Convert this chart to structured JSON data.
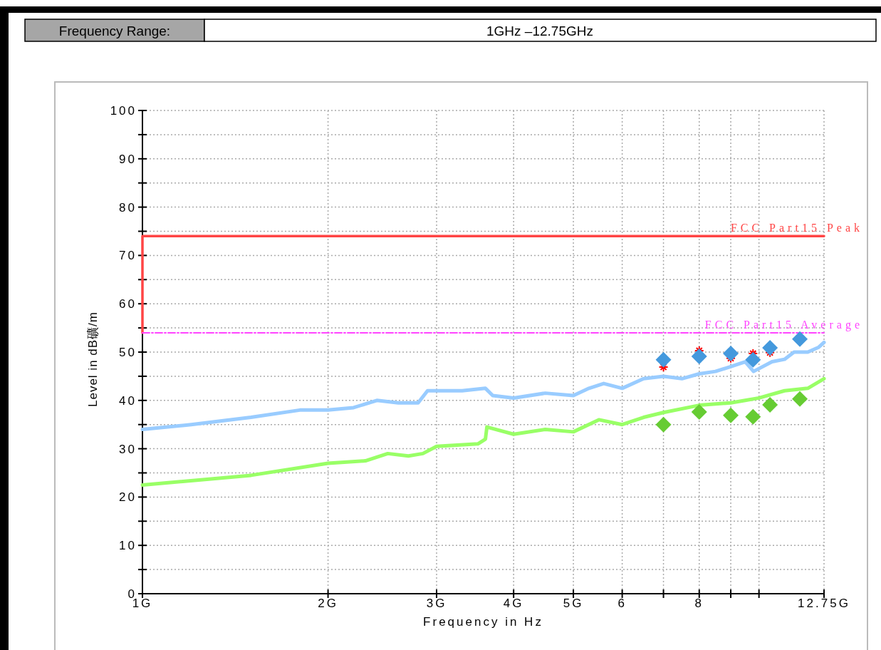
{
  "chart_data": {
    "type": "line",
    "title": "Frequency Range:",
    "subtitle": "1GHz –12.75GHz",
    "xlabel": "Frequency in Hz",
    "ylabel": "Level in dB礦/m",
    "log": "x",
    "grid": true,
    "legend": false,
    "xlim": [
      1,
      12.75
    ],
    "xticks": [
      {
        "value": 1,
        "label": "1G"
      },
      {
        "value": 2,
        "label": "2G"
      },
      {
        "value": 3,
        "label": "3G"
      },
      {
        "value": 4,
        "label": "4G"
      },
      {
        "value": 5,
        "label": "5G"
      },
      6,
      {
        "value": 7,
        "label": null
      },
      8,
      {
        "value": 9,
        "label": null
      },
      {
        "value": 10,
        "label": null
      },
      {
        "value": 12.75,
        "label": "12.75G"
      }
    ],
    "ylim": [
      0,
      100
    ],
    "yticks": [
      0,
      {
        "value": 5,
        "label": null
      },
      10,
      {
        "value": 15,
        "label": null
      },
      20,
      {
        "value": 25,
        "label": null
      },
      30,
      {
        "value": 35,
        "label": null
      },
      40,
      {
        "value": 45,
        "label": null
      },
      50,
      {
        "value": 55,
        "label": null
      },
      60,
      {
        "value": 65,
        "label": null
      },
      70,
      {
        "value": 75,
        "label": null
      },
      80,
      {
        "value": 85,
        "label": null
      },
      90,
      {
        "value": 95,
        "label": null
      },
      100
    ],
    "series": [
      {
        "type": "line",
        "color": "#99ccff",
        "marker": "none",
        "line_style": "solid",
        "x": [
          1,
          1.2,
          1.5,
          1.8,
          2,
          2.2,
          2.4,
          2.6,
          2.8,
          2.9,
          3.3,
          3.6,
          3.7,
          4,
          4.5,
          5,
          5.3,
          5.6,
          6,
          6.5,
          7,
          7.5,
          8,
          8.5,
          9,
          9.5,
          9.8,
          10.5,
          11,
          11.4,
          12,
          12.5,
          12.75
        ],
        "values": [
          34,
          35,
          36.5,
          38,
          38,
          38.5,
          40,
          39.5,
          39.5,
          42,
          42,
          42.5,
          41,
          40.5,
          41.5,
          41,
          42.5,
          43.5,
          42.5,
          44.5,
          45,
          44.5,
          45.5,
          46,
          47,
          48,
          46,
          48,
          48.5,
          50,
          50,
          51,
          52
        ]
      },
      {
        "type": "line",
        "color": "#99ff66",
        "marker": "none",
        "line_style": "solid",
        "x": [
          1,
          1.5,
          2,
          2.3,
          2.5,
          2.7,
          2.85,
          3,
          3.5,
          3.6,
          3.62,
          4,
          4.5,
          5,
          5.5,
          6,
          6.5,
          7,
          8,
          9,
          9.5,
          10,
          11,
          12,
          12.75
        ],
        "values": [
          22.5,
          24.5,
          27,
          27.5,
          29,
          28.5,
          29,
          30.5,
          31,
          32,
          34.5,
          33,
          34,
          33.5,
          36,
          35,
          36.5,
          37.5,
          39,
          39.5,
          40,
          40.5,
          42,
          42.5,
          44.5
        ]
      },
      {
        "type": "line",
        "name": "FCC Part15 Peak",
        "color": "#ff4444",
        "marker": "none",
        "line_style": "solid",
        "x": [
          1,
          1,
          12.75
        ],
        "values": [
          54,
          74,
          74
        ]
      },
      {
        "type": "line",
        "name": "FCC Part15 Average",
        "color": "#ff44ff",
        "marker": "none",
        "line_style": "dashed",
        "x": [
          1,
          12.75
        ],
        "values": [
          54,
          54
        ]
      },
      {
        "type": "scatter",
        "color": "#ff0000",
        "marker": "cross",
        "x": [
          7,
          8,
          9,
          9.78,
          10.42
        ],
        "values": [
          46.9,
          50.3,
          48.7,
          49.7,
          49.9
        ]
      },
      {
        "type": "scatter",
        "color": "#4499dd",
        "marker": "diamond",
        "x": [
          7,
          8,
          9,
          9.78,
          10.42,
          11.65
        ],
        "values": [
          48.4,
          49.1,
          49.7,
          48.4,
          50.9,
          52.7
        ]
      },
      {
        "type": "scatter",
        "color": "#66cc33",
        "marker": "diamond",
        "x": [
          7,
          8,
          9,
          9.78,
          10.42,
          11.65
        ],
        "values": [
          35,
          37.6,
          36.9,
          36.6,
          39.1,
          40.3
        ]
      }
    ]
  }
}
